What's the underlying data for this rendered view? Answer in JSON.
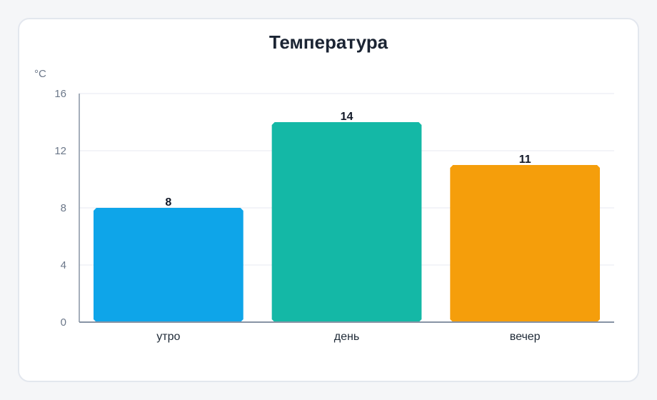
{
  "chart_data": {
    "type": "bar",
    "title": "Температура",
    "ylabel": "°C",
    "xlabel": "",
    "categories": [
      "утро",
      "день",
      "вечер"
    ],
    "values": [
      8,
      14,
      11
    ],
    "colors": [
      "#0ea5e9",
      "#14b8a6",
      "#f59e0b"
    ],
    "ylim": [
      0,
      16
    ],
    "yticks": [
      0,
      4,
      8,
      12,
      16
    ],
    "grid": true,
    "data_labels": true
  }
}
